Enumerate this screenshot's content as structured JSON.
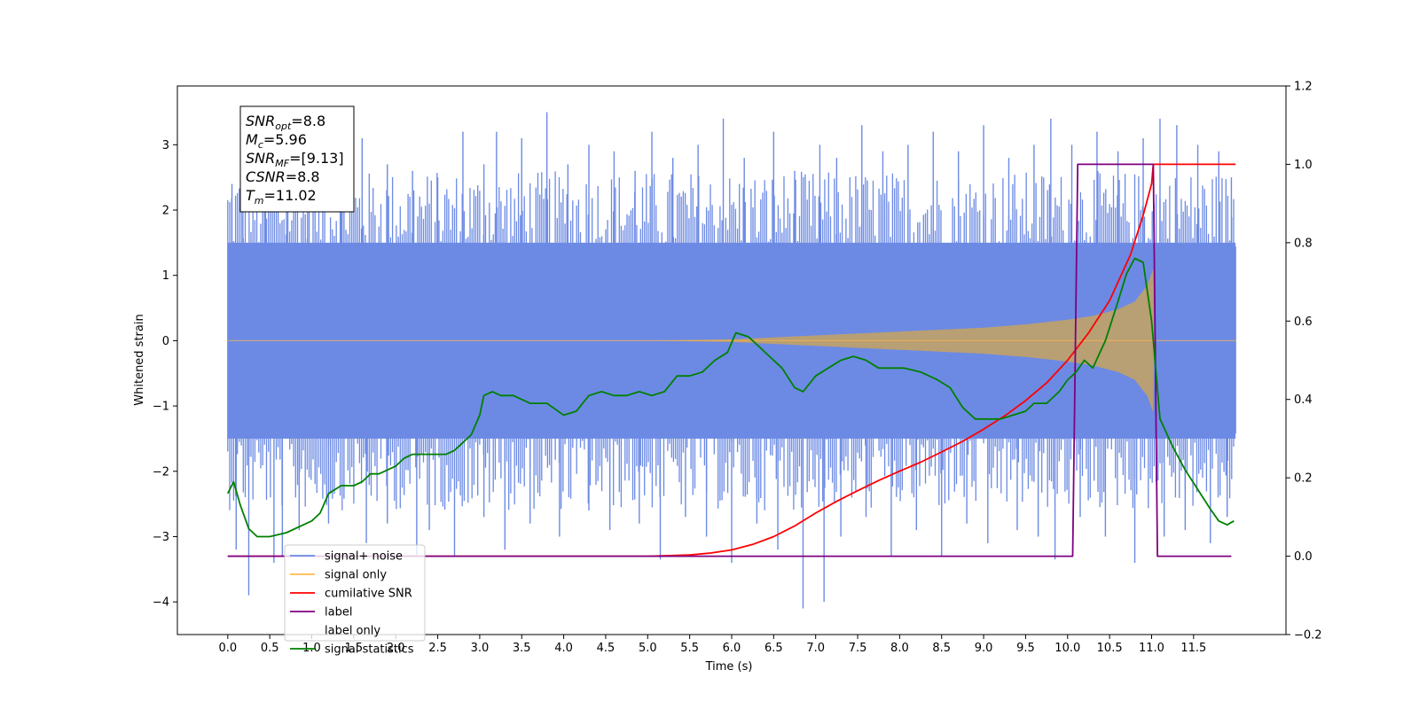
{
  "chart_data": {
    "type": "line",
    "title": "",
    "xlabel": "Time (s)",
    "ylabel": "Whitened strain",
    "ylabel_right": "",
    "xlim": [
      -0.6,
      12.6
    ],
    "ylim": [
      -4.5,
      3.9
    ],
    "ylim_right": [
      -0.2,
      1.2
    ],
    "x_ticks": [
      0.0,
      0.5,
      1.0,
      1.5,
      2.0,
      2.5,
      3.0,
      3.5,
      4.0,
      4.5,
      5.0,
      5.5,
      6.0,
      6.5,
      7.0,
      7.5,
      8.0,
      8.5,
      9.0,
      9.5,
      10.0,
      10.5,
      11.0,
      11.5
    ],
    "x_tick_labels": [
      "0.0",
      "0.5",
      "1.0",
      "1.5",
      "2.0",
      "2.5",
      "3.0",
      "3.5",
      "4.0",
      "4.5",
      "5.0",
      "5.5",
      "6.0",
      "6.5",
      "7.0",
      "7.5",
      "8.0",
      "8.5",
      "9.0",
      "9.5",
      "10.0",
      "10.5",
      "11.0",
      "11.5"
    ],
    "y_ticks": [
      -4,
      -3,
      -2,
      -1,
      0,
      1,
      2,
      3
    ],
    "y_tick_labels": [
      "−4",
      "−3",
      "−2",
      "−1",
      "0",
      "1",
      "2",
      "3"
    ],
    "y_ticks_right": [
      -0.2,
      0.0,
      0.2,
      0.4,
      0.6,
      0.8,
      1.0,
      1.2
    ],
    "y_tick_labels_right": [
      "−0.2",
      "0.0",
      "0.2",
      "0.4",
      "0.6",
      "0.8",
      "1.0",
      "1.2"
    ],
    "grid": false,
    "legend_position": "lower-left",
    "annotations": [
      {
        "main": "SNR",
        "sub": "opt",
        "rest": "=8.8"
      },
      {
        "main": "M",
        "sub": "c",
        "rest": "=5.96"
      },
      {
        "main": "SNR",
        "sub": "MF",
        "rest": "=[9.13]"
      },
      {
        "main": "CSNR",
        "sub": "",
        "rest": "=8.8"
      },
      {
        "main": "T",
        "sub": "m",
        "rest": "=11.02"
      }
    ],
    "noise": {
      "x_range": [
        0.0,
        12.0
      ],
      "core_band": [
        -1.5,
        1.5
      ],
      "spikes_up": [
        [
          0.05,
          2.4
        ],
        [
          0.18,
          2.9
        ],
        [
          0.45,
          3.1
        ],
        [
          0.7,
          2.7
        ],
        [
          0.95,
          3.2
        ],
        [
          1.35,
          3.0
        ],
        [
          1.6,
          3.1
        ],
        [
          1.9,
          2.7
        ],
        [
          2.2,
          2.6
        ],
        [
          2.5,
          2.5
        ],
        [
          2.8,
          3.2
        ],
        [
          3.05,
          2.7
        ],
        [
          3.2,
          3.2
        ],
        [
          3.5,
          3.1
        ],
        [
          3.8,
          3.5
        ],
        [
          4.05,
          2.7
        ],
        [
          4.3,
          3.0
        ],
        [
          4.6,
          2.9
        ],
        [
          4.85,
          2.6
        ],
        [
          5.05,
          3.2
        ],
        [
          5.3,
          2.8
        ],
        [
          5.6,
          3.0
        ],
        [
          5.9,
          3.4
        ],
        [
          6.15,
          2.8
        ],
        [
          6.5,
          3.2
        ],
        [
          6.75,
          2.6
        ],
        [
          7.05,
          3.0
        ],
        [
          7.25,
          2.8
        ],
        [
          7.55,
          3.3
        ],
        [
          7.8,
          2.9
        ],
        [
          8.1,
          3.0
        ],
        [
          8.4,
          3.2
        ],
        [
          8.7,
          2.9
        ],
        [
          9.0,
          3.3
        ],
        [
          9.3,
          2.8
        ],
        [
          9.6,
          3.0
        ],
        [
          9.8,
          3.4
        ],
        [
          10.05,
          3.0
        ],
        [
          10.35,
          3.2
        ],
        [
          10.6,
          2.9
        ],
        [
          10.9,
          3.1
        ],
        [
          11.1,
          3.4
        ],
        [
          11.3,
          3.3
        ],
        [
          11.55,
          3.0
        ],
        [
          11.8,
          2.9
        ],
        [
          11.95,
          2.5
        ]
      ],
      "spikes_down": [
        [
          0.1,
          -3.2
        ],
        [
          0.25,
          -3.9
        ],
        [
          0.55,
          -3.4
        ],
        [
          0.65,
          -3.3
        ],
        [
          0.85,
          -2.9
        ],
        [
          1.2,
          -2.8
        ],
        [
          1.65,
          -3.1
        ],
        [
          1.9,
          -2.8
        ],
        [
          2.25,
          -3.3
        ],
        [
          2.4,
          -2.9
        ],
        [
          2.7,
          -3.3
        ],
        [
          3.05,
          -2.7
        ],
        [
          3.3,
          -3.2
        ],
        [
          3.6,
          -2.8
        ],
        [
          3.95,
          -3.0
        ],
        [
          4.3,
          -2.6
        ],
        [
          4.55,
          -2.9
        ],
        [
          4.9,
          -2.8
        ],
        [
          5.15,
          -3.35
        ],
        [
          5.45,
          -2.7
        ],
        [
          5.7,
          -3.0
        ],
        [
          6.0,
          -3.4
        ],
        [
          6.3,
          -2.8
        ],
        [
          6.55,
          -3.2
        ],
        [
          6.85,
          -4.1
        ],
        [
          7.1,
          -4.0
        ],
        [
          7.3,
          -3.0
        ],
        [
          7.6,
          -2.7
        ],
        [
          7.9,
          -3.3
        ],
        [
          8.2,
          -2.9
        ],
        [
          8.5,
          -3.3
        ],
        [
          8.8,
          -2.8
        ],
        [
          9.05,
          -3.1
        ],
        [
          9.4,
          -2.9
        ],
        [
          9.65,
          -3.0
        ],
        [
          9.85,
          -3.35
        ],
        [
          10.15,
          -2.7
        ],
        [
          10.45,
          -3.0
        ],
        [
          10.8,
          -3.4
        ],
        [
          11.15,
          -3.0
        ],
        [
          11.4,
          -2.9
        ],
        [
          11.7,
          -3.1
        ],
        [
          11.9,
          -2.7
        ]
      ]
    },
    "series": [
      {
        "name": "signal+ noise",
        "axis": "left",
        "color": "#6c8ae4",
        "kind": "noise"
      },
      {
        "name": "signal only",
        "axis": "left",
        "color": "#ffb84d",
        "kind": "chirp",
        "fill_color": "#bda06e",
        "envelope": {
          "x": [
            0.0,
            5.0,
            6.0,
            7.0,
            8.0,
            9.0,
            9.5,
            10.0,
            10.3,
            10.6,
            10.8,
            10.95,
            11.02,
            11.03,
            12.0
          ],
          "y": [
            0.0,
            0.0,
            0.02,
            0.08,
            0.14,
            0.2,
            0.25,
            0.32,
            0.38,
            0.48,
            0.6,
            0.85,
            1.1,
            0.0,
            0.0
          ]
        }
      },
      {
        "name": "cumilative SNR",
        "axis": "right",
        "color": "#ff0000",
        "x": [
          0.0,
          5.0,
          5.5,
          5.75,
          6.0,
          6.25,
          6.5,
          6.75,
          7.0,
          7.25,
          7.5,
          7.75,
          8.0,
          8.25,
          8.5,
          8.75,
          9.0,
          9.25,
          9.5,
          9.75,
          10.0,
          10.25,
          10.5,
          10.75,
          10.9,
          11.0,
          11.02,
          12.0
        ],
        "y": [
          0.0,
          0.0,
          0.003,
          0.008,
          0.016,
          0.03,
          0.05,
          0.077,
          0.11,
          0.14,
          0.167,
          0.193,
          0.217,
          0.24,
          0.266,
          0.293,
          0.324,
          0.358,
          0.397,
          0.442,
          0.5,
          0.57,
          0.652,
          0.77,
          0.87,
          0.95,
          1.0,
          1.0
        ]
      },
      {
        "name": "label",
        "axis": "right",
        "color": "#800080",
        "x": [
          0.0,
          10.06,
          10.12,
          11.02,
          11.07,
          11.95
        ],
        "y": [
          0.0,
          0.0,
          1.0,
          1.0,
          0.0,
          0.0
        ]
      },
      {
        "name": "label only",
        "axis": "right",
        "color": "#dda0dd",
        "hidden": true
      },
      {
        "name": "signal statistics",
        "axis": "right",
        "color": "#008000",
        "x": [
          0.0,
          0.07,
          0.15,
          0.25,
          0.35,
          0.5,
          0.7,
          0.9,
          1.0,
          1.1,
          1.2,
          1.35,
          1.5,
          1.6,
          1.7,
          1.8,
          1.9,
          2.0,
          2.1,
          2.2,
          2.35,
          2.5,
          2.6,
          2.7,
          2.8,
          2.9,
          3.0,
          3.05,
          3.15,
          3.25,
          3.4,
          3.6,
          3.8,
          4.0,
          4.15,
          4.3,
          4.45,
          4.6,
          4.75,
          4.9,
          5.05,
          5.2,
          5.35,
          5.5,
          5.65,
          5.8,
          5.95,
          6.05,
          6.2,
          6.3,
          6.45,
          6.6,
          6.75,
          6.85,
          7.0,
          7.15,
          7.3,
          7.45,
          7.6,
          7.75,
          7.9,
          8.05,
          8.25,
          8.45,
          8.6,
          8.75,
          8.9,
          9.05,
          9.2,
          9.35,
          9.5,
          9.6,
          9.75,
          9.9,
          10.0,
          10.1,
          10.2,
          10.3,
          10.45,
          10.6,
          10.7,
          10.8,
          10.9,
          11.0,
          11.1,
          11.25,
          11.4,
          11.55,
          11.7,
          11.8,
          11.9,
          11.98
        ],
        "y": [
          0.16,
          0.19,
          0.13,
          0.07,
          0.05,
          0.05,
          0.06,
          0.08,
          0.09,
          0.11,
          0.16,
          0.18,
          0.18,
          0.19,
          0.21,
          0.21,
          0.22,
          0.23,
          0.25,
          0.26,
          0.26,
          0.26,
          0.26,
          0.27,
          0.29,
          0.31,
          0.36,
          0.41,
          0.42,
          0.41,
          0.41,
          0.39,
          0.39,
          0.36,
          0.37,
          0.41,
          0.42,
          0.41,
          0.41,
          0.42,
          0.41,
          0.42,
          0.46,
          0.46,
          0.47,
          0.5,
          0.52,
          0.57,
          0.56,
          0.54,
          0.51,
          0.48,
          0.43,
          0.42,
          0.46,
          0.48,
          0.5,
          0.51,
          0.5,
          0.48,
          0.48,
          0.48,
          0.47,
          0.45,
          0.43,
          0.38,
          0.35,
          0.35,
          0.35,
          0.36,
          0.37,
          0.39,
          0.39,
          0.42,
          0.45,
          0.47,
          0.5,
          0.48,
          0.55,
          0.65,
          0.72,
          0.76,
          0.75,
          0.6,
          0.35,
          0.28,
          0.22,
          0.17,
          0.12,
          0.09,
          0.08,
          0.09
        ]
      }
    ]
  }
}
